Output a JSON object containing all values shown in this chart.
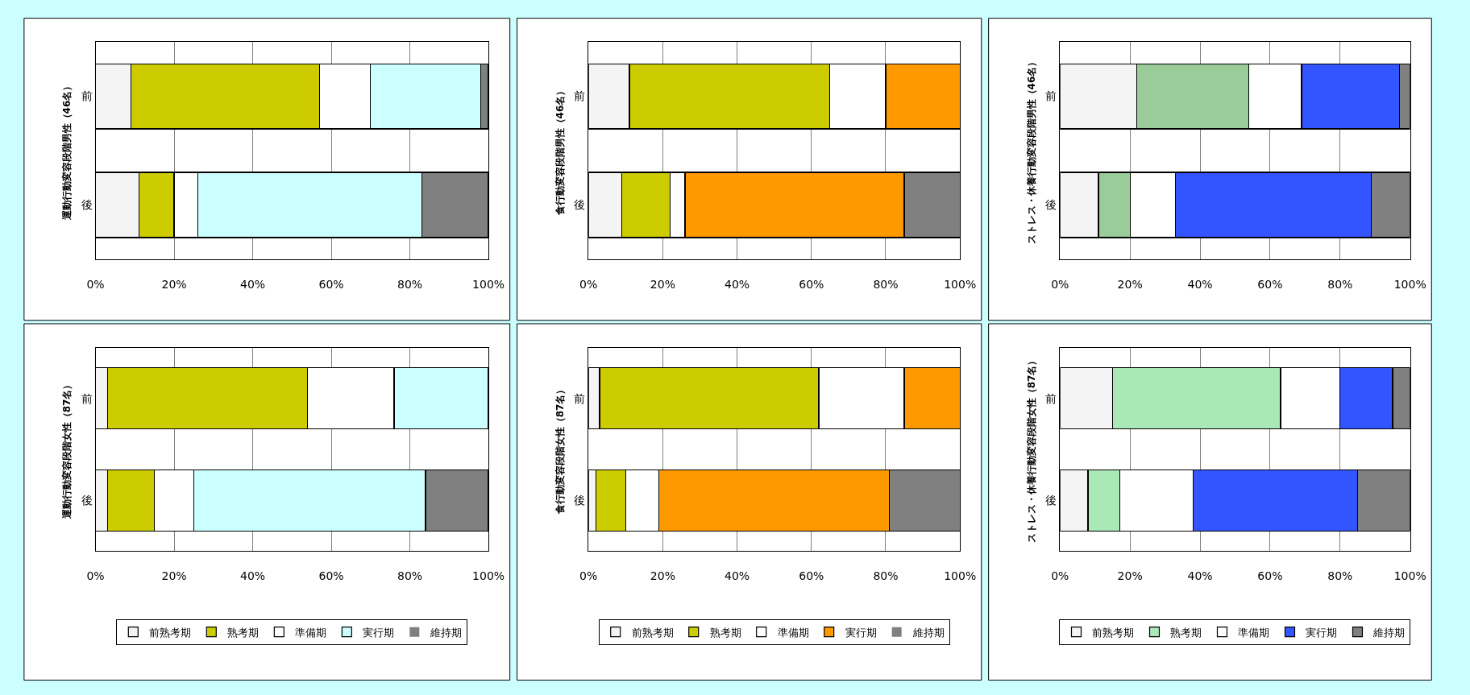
{
  "chart_data": [
    {
      "type": "bar",
      "orientation": "horizontal",
      "stacked": true,
      "ylabel": "運動行動変容段階男性（46名）",
      "categories": [
        "前",
        "後"
      ],
      "xlim": [
        0,
        100
      ],
      "xticks": [
        {
          "value": 0,
          "label": "0%"
        },
        {
          "value": 20,
          "label": "20%"
        },
        {
          "value": 40,
          "label": "40%"
        },
        {
          "value": 60,
          "label": "60%"
        },
        {
          "value": 80,
          "label": "80%"
        },
        {
          "value": 100,
          "label": "100%"
        }
      ],
      "grid": "x",
      "legend": false,
      "series": [
        {
          "color": "#f4f4f4",
          "values": [
            9,
            11
          ]
        },
        {
          "color": "#cccc00",
          "values": [
            48,
            9
          ]
        },
        {
          "color": "#ffffff",
          "values": [
            13,
            6
          ]
        },
        {
          "color": "#ccffff",
          "values": [
            28,
            57
          ]
        },
        {
          "color": "#808080",
          "values": [
            2,
            17
          ]
        }
      ]
    },
    {
      "type": "bar",
      "orientation": "horizontal",
      "stacked": true,
      "ylabel": "食行動変容段階男性（46名）",
      "categories": [
        "前",
        "後"
      ],
      "xlim": [
        0,
        100
      ],
      "xticks": [
        {
          "value": 0,
          "label": "0%"
        },
        {
          "value": 20,
          "label": "20%"
        },
        {
          "value": 40,
          "label": "40%"
        },
        {
          "value": 60,
          "label": "60%"
        },
        {
          "value": 80,
          "label": "80%"
        },
        {
          "value": 100,
          "label": "100%"
        }
      ],
      "grid": "x",
      "legend": false,
      "series": [
        {
          "color": "#f4f4f4",
          "values": [
            11,
            9
          ]
        },
        {
          "color": "#cccc00",
          "values": [
            54,
            13
          ]
        },
        {
          "color": "#ffffff",
          "values": [
            15,
            4
          ]
        },
        {
          "color": "#ff9900",
          "values": [
            20,
            59
          ]
        },
        {
          "color": "#808080",
          "values": [
            0,
            15
          ]
        }
      ]
    },
    {
      "type": "bar",
      "orientation": "horizontal",
      "stacked": true,
      "ylabel": "ストレス・休養行動変容段階男性（46名）",
      "categories": [
        "前",
        "後"
      ],
      "xlim": [
        0,
        100
      ],
      "xticks": [
        {
          "value": 0,
          "label": "0%"
        },
        {
          "value": 20,
          "label": "20%"
        },
        {
          "value": 40,
          "label": "40%"
        },
        {
          "value": 60,
          "label": "60%"
        },
        {
          "value": 80,
          "label": "80%"
        },
        {
          "value": 100,
          "label": "100%"
        }
      ],
      "grid": "x",
      "legend": false,
      "series": [
        {
          "color": "#f4f4f4",
          "values": [
            22,
            11
          ]
        },
        {
          "color": "#99cc99",
          "values": [
            32,
            9
          ]
        },
        {
          "color": "#ffffff",
          "values": [
            15,
            13
          ]
        },
        {
          "color": "#3355ff",
          "values": [
            28,
            56
          ]
        },
        {
          "color": "#808080",
          "values": [
            3,
            11
          ]
        }
      ]
    },
    {
      "type": "bar",
      "orientation": "horizontal",
      "stacked": true,
      "ylabel": "運動行動変容段階女性（87名）",
      "categories": [
        "前",
        "後"
      ],
      "xlim": [
        0,
        100
      ],
      "xticks": [
        {
          "value": 0,
          "label": "0%"
        },
        {
          "value": 20,
          "label": "20%"
        },
        {
          "value": 40,
          "label": "40%"
        },
        {
          "value": 60,
          "label": "60%"
        },
        {
          "value": 80,
          "label": "80%"
        },
        {
          "value": 100,
          "label": "100%"
        }
      ],
      "grid": "x",
      "legend": "bottom",
      "series": [
        {
          "name": "前熟考期",
          "color": "#f4f4f4",
          "values": [
            3,
            3
          ]
        },
        {
          "name": "熟考期",
          "color": "#cccc00",
          "values": [
            51,
            12
          ]
        },
        {
          "name": "準備期",
          "color": "#ffffff",
          "values": [
            22,
            10
          ]
        },
        {
          "name": "実行期",
          "color": "#ccffff",
          "values": [
            24,
            59
          ]
        },
        {
          "name": "維持期",
          "color": "#808080",
          "values": [
            0,
            16
          ]
        }
      ]
    },
    {
      "type": "bar",
      "orientation": "horizontal",
      "stacked": true,
      "ylabel": "食行動変容段階女性（87名）",
      "categories": [
        "前",
        "後"
      ],
      "xlim": [
        0,
        100
      ],
      "xticks": [
        {
          "value": 0,
          "label": "0%"
        },
        {
          "value": 20,
          "label": "20%"
        },
        {
          "value": 40,
          "label": "40%"
        },
        {
          "value": 60,
          "label": "60%"
        },
        {
          "value": 80,
          "label": "80%"
        },
        {
          "value": 100,
          "label": "100%"
        }
      ],
      "grid": "x",
      "legend": "bottom",
      "series": [
        {
          "name": "前熟考期",
          "color": "#f4f4f4",
          "values": [
            3,
            2
          ]
        },
        {
          "name": "熟考期",
          "color": "#cccc00",
          "values": [
            59,
            8
          ]
        },
        {
          "name": "準備期",
          "color": "#ffffff",
          "values": [
            23,
            9
          ]
        },
        {
          "name": "実行期",
          "color": "#ff9900",
          "values": [
            15,
            62
          ]
        },
        {
          "name": "維持期",
          "color": "#808080",
          "values": [
            0,
            19
          ]
        }
      ]
    },
    {
      "type": "bar",
      "orientation": "horizontal",
      "stacked": true,
      "ylabel": "ストレス・休養行動変容段階女性（87名）",
      "categories": [
        "前",
        "後"
      ],
      "xlim": [
        0,
        100
      ],
      "xticks": [
        {
          "value": 0,
          "label": "0%"
        },
        {
          "value": 20,
          "label": "20%"
        },
        {
          "value": 40,
          "label": "40%"
        },
        {
          "value": 60,
          "label": "60%"
        },
        {
          "value": 80,
          "label": "80%"
        },
        {
          "value": 100,
          "label": "100%"
        }
      ],
      "grid": "x",
      "legend": "bottom",
      "series": [
        {
          "name": "前熟考期",
          "color": "#f4f4f4",
          "values": [
            15,
            8
          ]
        },
        {
          "name": "熟考期",
          "color": "#aae8b8",
          "values": [
            48,
            9
          ]
        },
        {
          "name": "準備期",
          "color": "#ffffff",
          "values": [
            17,
            21
          ]
        },
        {
          "name": "実行期",
          "color": "#3355ff",
          "values": [
            15,
            47
          ]
        },
        {
          "name": "維持期",
          "color": "#808080",
          "values": [
            5,
            15
          ]
        }
      ]
    }
  ]
}
